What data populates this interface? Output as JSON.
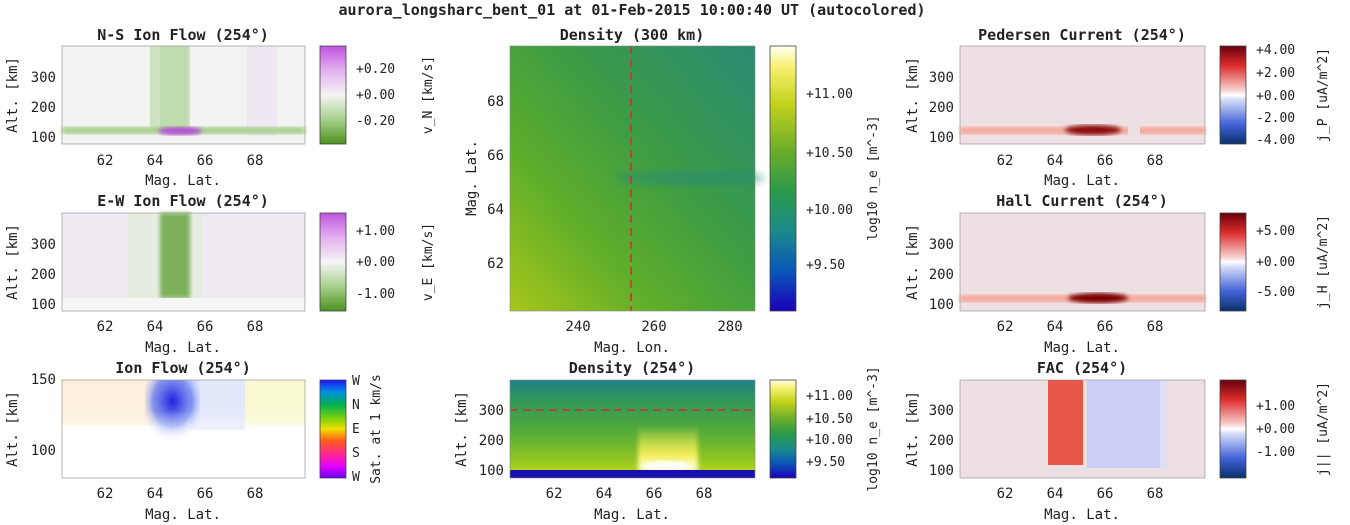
{
  "figure_title": "aurora_longsharc_bent_01 at 01-Feb-2015 10:00:40 UT (autocolored)",
  "chart_data": [
    {
      "id": "ns",
      "type": "heatmap",
      "title": "N-S Ion Flow (254°)",
      "xlabel": "Mag. Lat.",
      "ylabel": "Alt. [km]",
      "x_ticks": [
        "62",
        "64",
        "66",
        "68"
      ],
      "y_ticks": [
        "100",
        "200",
        "300"
      ],
      "colorbar": {
        "label": "v_N [km/s]",
        "ticks": [
          "+0.20",
          "+0.00",
          "-0.20"
        ]
      }
    },
    {
      "id": "ew",
      "type": "heatmap",
      "title": "E-W Ion Flow (254°)",
      "xlabel": "Mag. Lat.",
      "ylabel": "Alt. [km]",
      "x_ticks": [
        "62",
        "64",
        "66",
        "68"
      ],
      "y_ticks": [
        "100",
        "200",
        "300"
      ],
      "colorbar": {
        "label": "v_E [km/s]",
        "ticks": [
          "+1.00",
          "+0.00",
          "-1.00"
        ]
      }
    },
    {
      "id": "if",
      "type": "heatmap",
      "title": "Ion Flow (254°)",
      "xlabel": "Mag. Lat.",
      "ylabel": "Alt. [km]",
      "x_ticks": [
        "62",
        "64",
        "66",
        "68"
      ],
      "y_ticks": [
        "100",
        "150"
      ],
      "colorbar": {
        "label": "Sat. at 1 km/s",
        "ticks": [
          "W",
          "N",
          "E",
          "S",
          "W"
        ]
      }
    },
    {
      "id": "d3",
      "type": "heatmap",
      "title": "Density (300 km)",
      "xlabel": "Mag. Lon.",
      "ylabel": "Mag. Lat.",
      "x_ticks": [
        "240",
        "260",
        "280"
      ],
      "y_ticks": [
        "62",
        "64",
        "66",
        "68"
      ],
      "colorbar": {
        "label": "log10 n_e [m^-3]",
        "ticks": [
          "+11.00",
          "+10.50",
          "+10.00",
          "+9.50"
        ]
      }
    },
    {
      "id": "d2",
      "type": "heatmap",
      "title": "Density (254°)",
      "xlabel": "Mag. Lat.",
      "ylabel": "Alt. [km]",
      "x_ticks": [
        "62",
        "64",
        "66",
        "68"
      ],
      "y_ticks": [
        "100",
        "200",
        "300"
      ],
      "colorbar": {
        "label": "log10 n_e [m^-3]",
        "ticks": [
          "+11.00",
          "+10.50",
          "+10.00",
          "+9.50"
        ]
      }
    },
    {
      "id": "pc",
      "type": "heatmap",
      "title": "Pedersen Current (254°)",
      "xlabel": "Mag. Lat.",
      "ylabel": "Alt. [km]",
      "x_ticks": [
        "62",
        "64",
        "66",
        "68"
      ],
      "y_ticks": [
        "100",
        "200",
        "300"
      ],
      "colorbar": {
        "label": "j_P [uA/m^2]",
        "ticks": [
          "+4.00",
          "+2.00",
          "+0.00",
          "-2.00",
          "-4.00"
        ]
      }
    },
    {
      "id": "hc",
      "type": "heatmap",
      "title": "Hall Current (254°)",
      "xlabel": "Mag. Lat.",
      "ylabel": "Alt. [km]",
      "x_ticks": [
        "62",
        "64",
        "66",
        "68"
      ],
      "y_ticks": [
        "100",
        "200",
        "300"
      ],
      "colorbar": {
        "label": "j_H [uA/m^2]",
        "ticks": [
          "+5.00",
          "+0.00",
          "-5.00"
        ]
      }
    },
    {
      "id": "fac",
      "type": "heatmap",
      "title": "FAC (254°)",
      "xlabel": "Mag. Lat.",
      "ylabel": "Alt. [km]",
      "x_ticks": [
        "62",
        "64",
        "66",
        "68"
      ],
      "y_ticks": [
        "100",
        "200",
        "300"
      ],
      "colorbar": {
        "label": "j|| [uA/m^2]",
        "ticks": [
          "+1.00",
          "+0.00",
          "-1.00"
        ]
      }
    }
  ]
}
